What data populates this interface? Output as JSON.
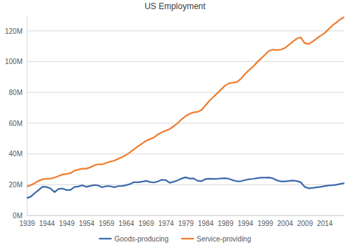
{
  "chart_data": {
    "type": "line",
    "title": "US Employment",
    "x": [
      1939,
      1940,
      1941,
      1942,
      1943,
      1944,
      1945,
      1946,
      1947,
      1948,
      1949,
      1950,
      1951,
      1952,
      1953,
      1954,
      1955,
      1956,
      1957,
      1958,
      1959,
      1960,
      1961,
      1962,
      1963,
      1964,
      1965,
      1966,
      1967,
      1968,
      1969,
      1970,
      1971,
      1972,
      1973,
      1974,
      1975,
      1976,
      1977,
      1978,
      1979,
      1980,
      1981,
      1982,
      1983,
      1984,
      1985,
      1986,
      1987,
      1988,
      1989,
      1990,
      1991,
      1992,
      1993,
      1994,
      1995,
      1996,
      1997,
      1998,
      1999,
      2000,
      2001,
      2002,
      2003,
      2004,
      2005,
      2006,
      2007,
      2008,
      2009,
      2010,
      2011,
      2012,
      2013,
      2014,
      2015,
      2016,
      2017,
      2018,
      2019
    ],
    "series": [
      {
        "name": "Goods-producing",
        "color": "#3c6aa9",
        "values": [
          11.3,
          12.2,
          14.5,
          16.5,
          18.7,
          18.5,
          17.5,
          15.2,
          17.2,
          17.5,
          16.5,
          16.5,
          18.5,
          18.8,
          19.6,
          18.6,
          19.2,
          19.8,
          19.5,
          18.3,
          19.0,
          19.0,
          18.4,
          19.0,
          19.2,
          19.6,
          20.4,
          21.6,
          21.6,
          21.9,
          22.5,
          21.8,
          21.4,
          22.1,
          23.2,
          23.0,
          21.2,
          21.9,
          22.8,
          24.0,
          24.8,
          24.0,
          24.1,
          22.6,
          22.3,
          23.6,
          23.9,
          23.7,
          23.8,
          24.1,
          24.2,
          23.8,
          22.8,
          22.2,
          22.3,
          23.0,
          23.5,
          23.8,
          24.2,
          24.5,
          24.5,
          24.7,
          24.1,
          22.8,
          22.1,
          22.1,
          22.4,
          22.7,
          22.4,
          21.6,
          18.6,
          17.6,
          17.9,
          18.3,
          18.6,
          19.1,
          19.5,
          19.6,
          20.0,
          20.5,
          21.0
        ]
      },
      {
        "name": "Service-providing",
        "color": "#ed7d31",
        "values": [
          18.8,
          19.7,
          21.0,
          22.5,
          23.5,
          23.8,
          24.0,
          24.6,
          25.6,
          26.6,
          26.9,
          27.5,
          29.1,
          29.8,
          30.4,
          30.4,
          31.3,
          32.6,
          33.2,
          33.2,
          34.1,
          35.0,
          35.6,
          36.8,
          37.9,
          39.3,
          41.0,
          43.0,
          44.9,
          46.6,
          48.4,
          49.6,
          50.6,
          52.6,
          54.0,
          55.0,
          56.2,
          58.0,
          60.0,
          62.5,
          64.5,
          66.0,
          67.0,
          67.3,
          68.5,
          71.5,
          74.5,
          77.0,
          79.5,
          82.0,
          84.5,
          86.0,
          86.3,
          86.8,
          89.0,
          92.0,
          94.5,
          96.8,
          99.5,
          102.0,
          104.5,
          107.0,
          107.8,
          107.5,
          107.8,
          108.8,
          110.8,
          113.0,
          115.0,
          115.8,
          112.0,
          111.5,
          113.0,
          115.0,
          116.8,
          118.5,
          121.0,
          123.5,
          125.5,
          127.5,
          129.0
        ]
      }
    ],
    "xlim": [
      1939,
      2019
    ],
    "xticks": [
      1939,
      1944,
      1949,
      1954,
      1959,
      1964,
      1969,
      1974,
      1979,
      1984,
      1989,
      1994,
      1999,
      2004,
      2009,
      2014
    ],
    "ylim": [
      0,
      130
    ],
    "yticks": [
      {
        "value": 0,
        "label": "0M"
      },
      {
        "value": 20,
        "label": "20M"
      },
      {
        "value": 40,
        "label": "40M"
      },
      {
        "value": 60,
        "label": "60M"
      },
      {
        "value": 80,
        "label": "80M"
      },
      {
        "value": 100,
        "label": "100M"
      },
      {
        "value": 120,
        "label": "120M"
      }
    ],
    "grid": true,
    "legend": "bottom"
  }
}
